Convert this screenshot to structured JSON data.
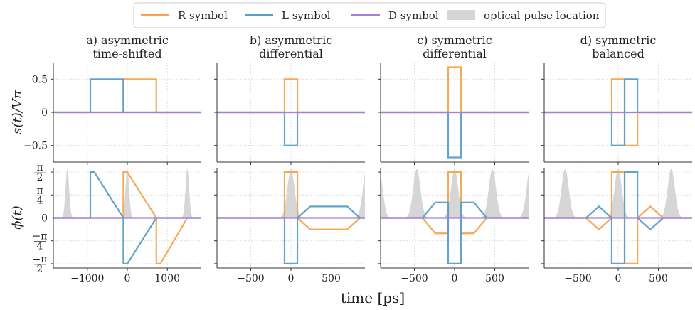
{
  "chart_data": {
    "type": "line",
    "figure_xlabel": "time [ps]",
    "row_ylabels": [
      "s(t)/Vπ",
      "ϕ(t)"
    ],
    "legend": [
      {
        "label": "R symbol",
        "kind": "line",
        "color": "#f7a34f"
      },
      {
        "label": "L symbol",
        "kind": "line",
        "color": "#5b9fc8"
      },
      {
        "label": "D symbol",
        "kind": "line",
        "color": "#a77fd6"
      },
      {
        "label": "optical pulse location",
        "kind": "patch",
        "color": "#d6d6d6"
      }
    ],
    "rows": [
      {
        "name": "voltage",
        "ylim": [
          -0.75,
          0.75
        ],
        "yticks": [
          {
            "value": 0.5,
            "label": "0.5"
          },
          {
            "value": 0,
            "label": "0"
          },
          {
            "value": -0.5,
            "label": "−0.5"
          }
        ]
      },
      {
        "name": "phase",
        "ylim": [
          -1.72,
          1.72
        ],
        "yticks": [
          {
            "value": 1.5708,
            "num": "π",
            "den": "2"
          },
          {
            "value": 0.7854,
            "num": "π",
            "den": "4"
          },
          {
            "value": 0,
            "label": "0"
          },
          {
            "value": -0.7854,
            "num": "−π",
            "den": "4"
          },
          {
            "value": -1.5708,
            "num": "−π",
            "den": "2"
          }
        ]
      }
    ],
    "columns": [
      {
        "title_line1": "a) asymmetric",
        "title_line2": "time-shifted",
        "xlim": [
          -1850,
          1850
        ],
        "xticks": [
          {
            "value": -1000,
            "label": "−1000"
          },
          {
            "value": 0,
            "label": "0"
          },
          {
            "value": 1000,
            "label": "1000"
          }
        ],
        "pulses": [
          -1500,
          0,
          1500
        ],
        "pulse_width": 45,
        "voltage": {
          "R": [
            [
              -1850,
              0
            ],
            [
              -100,
              0
            ],
            [
              -100,
              0.5
            ],
            [
              725,
              0.5
            ],
            [
              725,
              0
            ],
            [
              1850,
              0
            ]
          ],
          "L": [
            [
              -1850,
              0
            ],
            [
              -925,
              0
            ],
            [
              -925,
              0.5
            ],
            [
              -100,
              0.5
            ],
            [
              -100,
              0
            ],
            [
              1850,
              0
            ]
          ],
          "D": [
            [
              -1850,
              0
            ],
            [
              1850,
              0
            ]
          ]
        },
        "phase": {
          "R": [
            [
              -1850,
              0
            ],
            [
              -100,
              0
            ],
            [
              -100,
              1.5708
            ],
            [
              0,
              1.5708
            ],
            [
              725,
              0
            ],
            [
              725,
              -1.5708
            ],
            [
              825,
              -1.5708
            ],
            [
              1500,
              0
            ],
            [
              1850,
              0
            ]
          ],
          "L": [
            [
              -1850,
              0
            ],
            [
              -925,
              0
            ],
            [
              -925,
              1.5708
            ],
            [
              -825,
              1.5708
            ],
            [
              -100,
              0
            ],
            [
              -100,
              -1.5708
            ],
            [
              0,
              -1.5708
            ],
            [
              725,
              0
            ],
            [
              1850,
              0
            ]
          ],
          "D": [
            [
              -1850,
              0
            ],
            [
              1850,
              0
            ]
          ]
        }
      },
      {
        "title_line1": "b) asymmetric",
        "title_line2": "differential",
        "xlim": [
          -920,
          920
        ],
        "xticks": [
          {
            "value": -500,
            "label": "−500"
          },
          {
            "value": 0,
            "label": "0"
          },
          {
            "value": 500,
            "label": "500"
          }
        ],
        "pulses": [
          0,
          940
        ],
        "pulse_width": 45,
        "voltage": {
          "R": [
            [
              -920,
              0
            ],
            [
              -80,
              0
            ],
            [
              -80,
              0.5
            ],
            [
              80,
              0.5
            ],
            [
              80,
              0
            ],
            [
              920,
              0
            ]
          ],
          "L": [
            [
              -920,
              0
            ],
            [
              -80,
              0
            ],
            [
              -80,
              -0.5
            ],
            [
              80,
              -0.5
            ],
            [
              80,
              0
            ],
            [
              920,
              0
            ]
          ],
          "D": [
            [
              -920,
              0
            ],
            [
              920,
              0
            ]
          ]
        },
        "phase": {
          "R": [
            [
              -920,
              0
            ],
            [
              -80,
              0
            ],
            [
              -80,
              1.5708
            ],
            [
              80,
              1.5708
            ],
            [
              80,
              0
            ],
            [
              240,
              -0.393
            ],
            [
              700,
              -0.393
            ],
            [
              860,
              0
            ],
            [
              920,
              0
            ]
          ],
          "L": [
            [
              -920,
              0
            ],
            [
              -80,
              0
            ],
            [
              -80,
              -1.5708
            ],
            [
              80,
              -1.5708
            ],
            [
              80,
              0
            ],
            [
              240,
              0.393
            ],
            [
              700,
              0.393
            ],
            [
              860,
              0
            ],
            [
              920,
              0
            ]
          ],
          "D": [
            [
              -920,
              0
            ],
            [
              920,
              0
            ]
          ]
        }
      },
      {
        "title_line1": "c) symmetric",
        "title_line2": "differential",
        "xlim": [
          -920,
          920
        ],
        "xticks": [
          {
            "value": -500,
            "label": "−500"
          },
          {
            "value": 0,
            "label": "0"
          },
          {
            "value": 500,
            "label": "500"
          }
        ],
        "pulses": [
          -940,
          -470,
          0,
          470,
          940
        ],
        "pulse_width": 45,
        "voltage": {
          "R": [
            [
              -920,
              0
            ],
            [
              -80,
              0
            ],
            [
              -80,
              0.68
            ],
            [
              80,
              0.68
            ],
            [
              80,
              0
            ],
            [
              920,
              0
            ]
          ],
          "L": [
            [
              -920,
              0
            ],
            [
              -80,
              0
            ],
            [
              -80,
              -0.68
            ],
            [
              80,
              -0.68
            ],
            [
              80,
              0
            ],
            [
              920,
              0
            ]
          ],
          "D": [
            [
              -920,
              0
            ],
            [
              920,
              0
            ]
          ]
        },
        "phase": {
          "R": [
            [
              -920,
              0
            ],
            [
              -400,
              0
            ],
            [
              -240,
              -0.53
            ],
            [
              -80,
              -0.53
            ],
            [
              -80,
              1.5708
            ],
            [
              80,
              1.5708
            ],
            [
              80,
              -0.53
            ],
            [
              240,
              -0.53
            ],
            [
              400,
              0
            ],
            [
              920,
              0
            ]
          ],
          "L": [
            [
              -920,
              0
            ],
            [
              -400,
              0
            ],
            [
              -240,
              0.53
            ],
            [
              -80,
              0.53
            ],
            [
              -80,
              -1.5708
            ],
            [
              80,
              -1.5708
            ],
            [
              80,
              0.53
            ],
            [
              240,
              0.53
            ],
            [
              400,
              0
            ],
            [
              920,
              0
            ]
          ],
          "D": [
            [
              -920,
              0
            ],
            [
              920,
              0
            ]
          ]
        }
      },
      {
        "title_line1": "d) symmetric",
        "title_line2": "balanced",
        "xlim": [
          -920,
          920
        ],
        "xticks": [
          {
            "value": -500,
            "label": "−500"
          },
          {
            "value": 0,
            "label": "0"
          },
          {
            "value": 500,
            "label": "500"
          }
        ],
        "pulses": [
          -660,
          0,
          660
        ],
        "pulse_width": 45,
        "voltage": {
          "R": [
            [
              -920,
              0
            ],
            [
              -80,
              0
            ],
            [
              -80,
              0.5
            ],
            [
              80,
              0.5
            ],
            [
              80,
              -0.5
            ],
            [
              240,
              -0.5
            ],
            [
              240,
              0
            ],
            [
              920,
              0
            ]
          ],
          "L": [
            [
              -920,
              0
            ],
            [
              -80,
              0
            ],
            [
              -80,
              -0.5
            ],
            [
              80,
              -0.5
            ],
            [
              80,
              0.5
            ],
            [
              240,
              0.5
            ],
            [
              240,
              0
            ],
            [
              920,
              0
            ]
          ],
          "D": [
            [
              -920,
              0
            ],
            [
              920,
              0
            ]
          ]
        },
        "phase": {
          "R": [
            [
              -920,
              0
            ],
            [
              -400,
              0
            ],
            [
              -240,
              -0.393
            ],
            [
              -80,
              0
            ],
            [
              -80,
              1.5708
            ],
            [
              80,
              1.5708
            ],
            [
              80,
              -1.5708
            ],
            [
              240,
              -1.5708
            ],
            [
              240,
              0
            ],
            [
              400,
              0.393
            ],
            [
              560,
              0
            ],
            [
              920,
              0
            ]
          ],
          "L": [
            [
              -920,
              0
            ],
            [
              -400,
              0
            ],
            [
              -240,
              0.393
            ],
            [
              -80,
              0
            ],
            [
              -80,
              -1.5708
            ],
            [
              80,
              -1.5708
            ],
            [
              80,
              1.5708
            ],
            [
              240,
              1.5708
            ],
            [
              240,
              0
            ],
            [
              400,
              -0.393
            ],
            [
              560,
              0
            ],
            [
              920,
              0
            ]
          ],
          "D": [
            [
              -920,
              0
            ],
            [
              920,
              0
            ]
          ]
        }
      }
    ]
  }
}
